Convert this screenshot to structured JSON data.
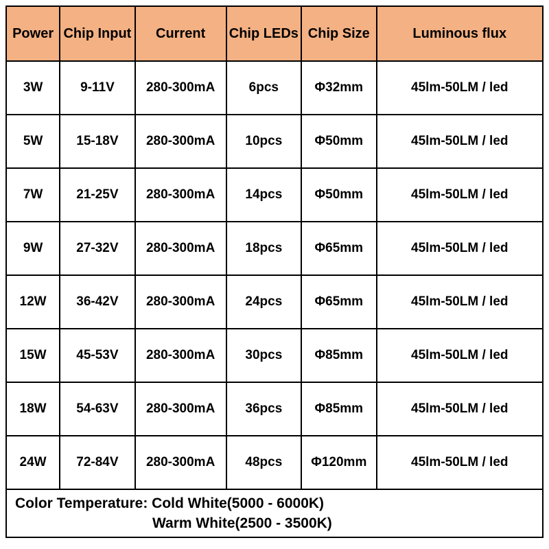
{
  "table": {
    "header_bg": "#f4b183",
    "border_color": "#000000",
    "text_color": "#000000",
    "cell_bg": "#ffffff",
    "columns": [
      {
        "label": "Power",
        "width": "10%"
      },
      {
        "label": "Chip Input",
        "width": "14%"
      },
      {
        "label": "Current",
        "width": "17%"
      },
      {
        "label": "Chip LEDs",
        "width": "14%"
      },
      {
        "label": "Chip Size",
        "width": "14%"
      },
      {
        "label": "Luminous flux",
        "width": "31%"
      }
    ],
    "rows": [
      [
        "3W",
        "9-11V",
        "280-300mA",
        "6pcs",
        "Φ32mm",
        "45lm-50LM / led"
      ],
      [
        "5W",
        "15-18V",
        "280-300mA",
        "10pcs",
        "Φ50mm",
        "45lm-50LM / led"
      ],
      [
        "7W",
        "21-25V",
        "280-300mA",
        "14pcs",
        "Φ50mm",
        "45lm-50LM / led"
      ],
      [
        "9W",
        "27-32V",
        "280-300mA",
        "18pcs",
        "Φ65mm",
        "45lm-50LM / led"
      ],
      [
        "12W",
        "36-42V",
        "280-300mA",
        "24pcs",
        "Φ65mm",
        "45lm-50LM / led"
      ],
      [
        "15W",
        "45-53V",
        "280-300mA",
        "30pcs",
        "Φ85mm",
        "45lm-50LM / led"
      ],
      [
        "18W",
        "54-63V",
        "280-300mA",
        "36pcs",
        "Φ85mm",
        "45lm-50LM / led"
      ],
      [
        "24W",
        "72-84V",
        "280-300mA",
        "48pcs",
        "Φ120mm",
        "45lm-50LM / led"
      ]
    ],
    "footer": {
      "line1_label": "Color Temperature:",
      "line1_value": "Cold White(5000 - 6000K)",
      "line2_value": "Warm White(2500 - 3500K)"
    }
  }
}
